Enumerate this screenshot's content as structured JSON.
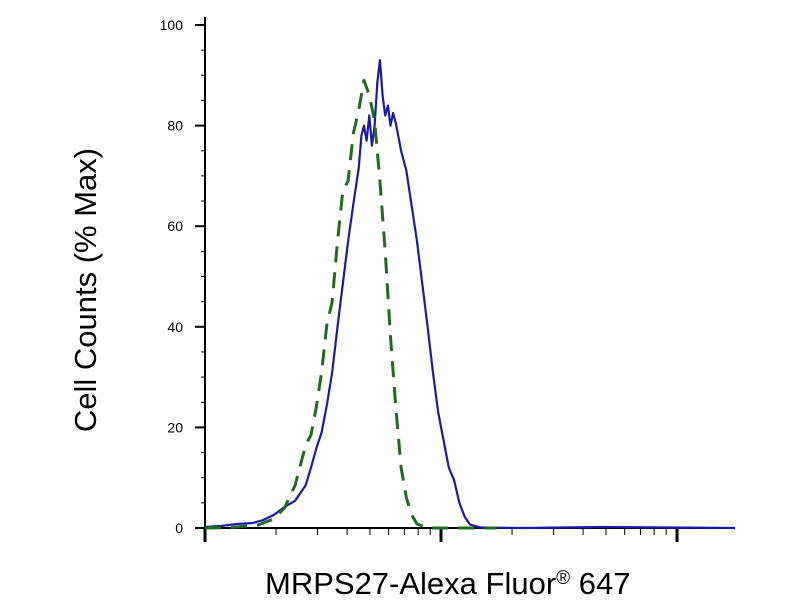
{
  "chart_data": {
    "type": "line",
    "xlabel": "MRPS27-Alexa Fluor",
    "xlabel_superscript": "®",
    "xlabel_suffix": " 647",
    "ylabel": "Cell Counts (% Max)",
    "x_scale": "log",
    "y_tick_labels": [
      "0",
      "20",
      "40",
      "60",
      "80",
      "100"
    ],
    "ylim": [
      0,
      100
    ],
    "grid": false,
    "legend": "none",
    "series": [
      {
        "color": "#1a1aa6",
        "style": "solid",
        "points": [
          [
            0.0,
            0.2
          ],
          [
            0.03,
            0.4
          ],
          [
            0.06,
            0.8
          ],
          [
            0.09,
            1.0
          ],
          [
            0.11,
            1.6
          ],
          [
            0.13,
            2.6
          ],
          [
            0.15,
            4.2
          ],
          [
            0.17,
            5.4
          ],
          [
            0.19,
            8.5
          ],
          [
            0.2,
            12.0
          ],
          [
            0.21,
            15.8
          ],
          [
            0.22,
            19.0
          ],
          [
            0.23,
            24.5
          ],
          [
            0.24,
            31.0
          ],
          [
            0.25,
            40.0
          ],
          [
            0.26,
            48.5
          ],
          [
            0.27,
            57.0
          ],
          [
            0.28,
            64.5
          ],
          [
            0.29,
            71.5
          ],
          [
            0.295,
            78.0
          ],
          [
            0.3,
            80.0
          ],
          [
            0.305,
            77.0
          ],
          [
            0.31,
            82.0
          ],
          [
            0.315,
            76.0
          ],
          [
            0.32,
            80.0
          ],
          [
            0.325,
            88.5
          ],
          [
            0.33,
            93.0
          ],
          [
            0.335,
            86.0
          ],
          [
            0.34,
            82.0
          ],
          [
            0.345,
            84.0
          ],
          [
            0.35,
            80.0
          ],
          [
            0.355,
            82.5
          ],
          [
            0.36,
            80.5
          ],
          [
            0.37,
            75.0
          ],
          [
            0.38,
            71.0
          ],
          [
            0.39,
            64.0
          ],
          [
            0.4,
            57.0
          ],
          [
            0.41,
            48.5
          ],
          [
            0.42,
            40.0
          ],
          [
            0.43,
            31.0
          ],
          [
            0.44,
            23.0
          ],
          [
            0.45,
            17.5
          ],
          [
            0.46,
            12.0
          ],
          [
            0.47,
            9.5
          ],
          [
            0.48,
            5.0
          ],
          [
            0.49,
            2.2
          ],
          [
            0.5,
            0.7
          ],
          [
            0.52,
            0.1
          ],
          [
            0.6,
            0.0
          ],
          [
            0.75,
            0.2
          ],
          [
            1.0,
            0.0
          ]
        ]
      },
      {
        "color": "#1f6b1f",
        "style": "dashed",
        "points": [
          [
            0.0,
            0.0
          ],
          [
            0.05,
            0.1
          ],
          [
            0.1,
            0.6
          ],
          [
            0.13,
            1.8
          ],
          [
            0.15,
            4.0
          ],
          [
            0.17,
            8.5
          ],
          [
            0.18,
            12.5
          ],
          [
            0.19,
            16.5
          ],
          [
            0.2,
            18.5
          ],
          [
            0.21,
            24.0
          ],
          [
            0.22,
            31.0
          ],
          [
            0.23,
            40.5
          ],
          [
            0.24,
            45.0
          ],
          [
            0.25,
            57.0
          ],
          [
            0.26,
            67.0
          ],
          [
            0.27,
            69.0
          ],
          [
            0.28,
            78.5
          ],
          [
            0.29,
            83.0
          ],
          [
            0.3,
            89.0
          ],
          [
            0.31,
            86.0
          ],
          [
            0.32,
            81.0
          ],
          [
            0.33,
            69.0
          ],
          [
            0.34,
            55.0
          ],
          [
            0.35,
            38.0
          ],
          [
            0.36,
            24.0
          ],
          [
            0.37,
            12.0
          ],
          [
            0.38,
            6.0
          ],
          [
            0.39,
            2.6
          ],
          [
            0.4,
            0.8
          ],
          [
            0.42,
            0.0
          ],
          [
            0.45,
            0.0
          ],
          [
            0.5,
            0.0
          ],
          [
            0.55,
            0.0
          ]
        ]
      }
    ]
  }
}
